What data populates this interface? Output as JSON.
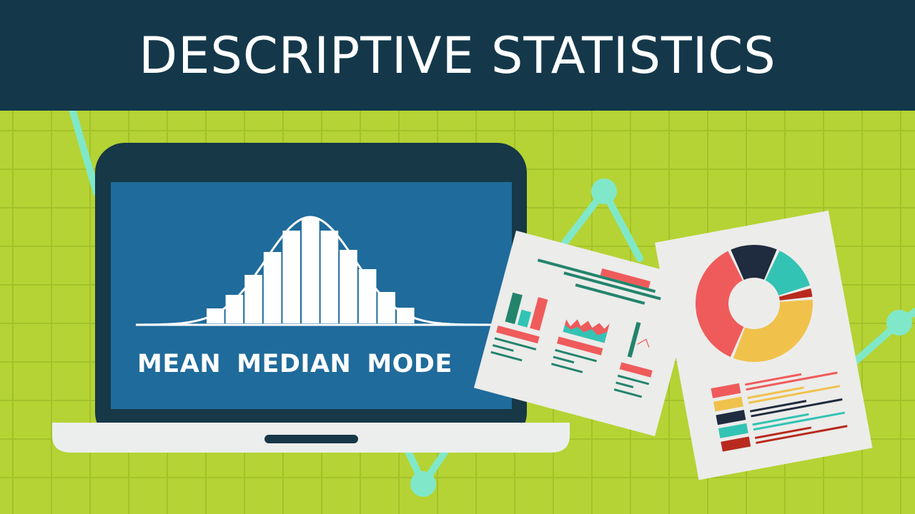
{
  "title": "DESCRIPTIVE STATISTICS",
  "screen_labels": [
    "MEAN",
    "MEDIAN",
    "MODE"
  ],
  "histogram": {
    "type": "bar",
    "bar_values": [
      21,
      40,
      68,
      100,
      130,
      148,
      130,
      103,
      76,
      44,
      22
    ],
    "overlay": "normal curve"
  },
  "donut_chart": {
    "segments": [
      {
        "color": "#1f2b3e",
        "value": 13
      },
      {
        "color": "#33c3b4",
        "value": 13
      },
      {
        "color": "#b82a1e",
        "value": 3
      },
      {
        "color": "#f0c24c",
        "value": 31
      },
      {
        "color": "#ef5b5b",
        "value": 35
      }
    ]
  },
  "colors": {
    "header": "#14384a",
    "background": "#b5d334",
    "grid": "#a3c22a",
    "screen": "#1f6b9b",
    "laptop_frame": "#163847",
    "accent_line": "#80e8c8",
    "paper": "#ececea",
    "red": "#ef5b5b",
    "teal": "#33c3b4",
    "green": "#23846c",
    "yellow": "#f0c24c",
    "navy": "#1f2b3e"
  }
}
